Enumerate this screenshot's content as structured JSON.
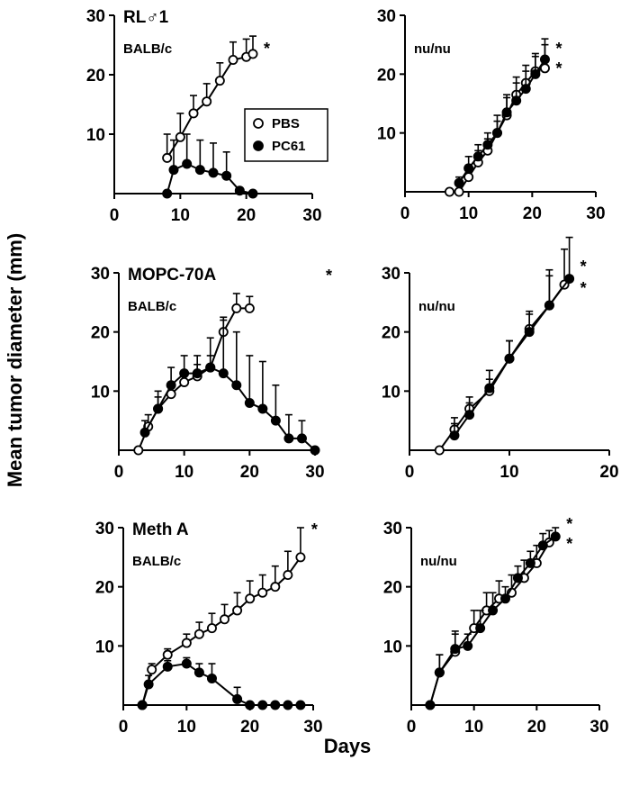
{
  "figure": {
    "ylabel": "Mean tumor diameter (mm)",
    "xlabel": "Days",
    "legend": [
      {
        "label": "PBS",
        "marker": "open-circle"
      },
      {
        "label": "PC61",
        "marker": "filled-circle"
      }
    ]
  },
  "chart_data": [
    {
      "type": "line",
      "title": "RL♂1",
      "strain": "BALB/c",
      "xlim": [
        0,
        30
      ],
      "ylim": [
        0,
        30
      ],
      "xticks": [
        "0",
        "10",
        "20",
        "30"
      ],
      "yticks": [
        "10",
        "20",
        "30"
      ],
      "stars": [
        "*"
      ],
      "series": [
        {
          "name": "PBS",
          "marker": "open",
          "x": [
            8,
            10,
            12,
            14,
            16,
            18,
            20,
            21
          ],
          "y": [
            6,
            9.5,
            13.5,
            15.5,
            19,
            22.5,
            23,
            23.5
          ],
          "err": [
            4,
            4,
            3,
            3,
            3,
            3,
            3,
            3
          ]
        },
        {
          "name": "PC61",
          "marker": "filled",
          "x": [
            8,
            9,
            11,
            13,
            15,
            17,
            19,
            21
          ],
          "y": [
            0,
            4,
            5,
            4,
            3.5,
            3,
            0.5,
            0
          ],
          "err": [
            0,
            5,
            5,
            5,
            5,
            4,
            0,
            0
          ]
        }
      ]
    },
    {
      "type": "line",
      "title": "",
      "strain": "nu/nu",
      "xlim": [
        0,
        30
      ],
      "ylim": [
        0,
        30
      ],
      "xticks": [
        "0",
        "10",
        "20",
        "30"
      ],
      "yticks": [
        "10",
        "20",
        "30"
      ],
      "stars": [
        "*",
        "*"
      ],
      "series": [
        {
          "name": "PBS",
          "marker": "open",
          "x": [
            7,
            8.5,
            10,
            11.5,
            13,
            14.5,
            16,
            17.5,
            19,
            20.5,
            22
          ],
          "y": [
            0,
            0,
            2.5,
            5,
            7,
            10,
            13,
            16.5,
            18.5,
            20.5,
            21
          ],
          "err": [
            0,
            0,
            2,
            2,
            2,
            2,
            3,
            3,
            3,
            3,
            4
          ]
        },
        {
          "name": "PC61",
          "marker": "filled",
          "x": [
            8.5,
            10,
            11.5,
            13,
            14.5,
            16,
            17.5,
            19,
            20.5,
            22
          ],
          "y": [
            1.5,
            4,
            6,
            8,
            10,
            13.5,
            15.5,
            17.5,
            20,
            22.5
          ],
          "err": [
            1,
            2,
            2,
            2,
            3,
            3,
            3,
            3,
            3,
            3.5
          ]
        }
      ]
    },
    {
      "type": "line",
      "title": "MOPC-70A",
      "strain": "BALB/c",
      "xlim": [
        0,
        30
      ],
      "ylim": [
        0,
        30
      ],
      "xticks": [
        "0",
        "10",
        "20",
        "30"
      ],
      "yticks": [
        "10",
        "20",
        "30"
      ],
      "stars": [
        "*"
      ],
      "series": [
        {
          "name": "PBS",
          "marker": "open",
          "x": [
            3,
            4.5,
            6,
            8,
            10,
            12,
            14,
            16,
            18,
            20
          ],
          "y": [
            0,
            4,
            7,
            9.5,
            11.5,
            12.5,
            14,
            20,
            24,
            24
          ],
          "err": [
            0,
            2,
            2,
            2,
            2,
            2,
            2,
            2.5,
            2.5,
            2
          ]
        },
        {
          "name": "PC61",
          "marker": "filled",
          "x": [
            4,
            6,
            8,
            10,
            12,
            14,
            16,
            18,
            20,
            22,
            24,
            26,
            28,
            30
          ],
          "y": [
            3,
            7,
            11,
            13,
            13,
            14,
            13,
            11,
            8,
            7,
            5,
            2,
            2,
            0
          ],
          "err": [
            2,
            3,
            3,
            3,
            3,
            5,
            9,
            9,
            8,
            8,
            6,
            4,
            3,
            0
          ]
        }
      ]
    },
    {
      "type": "line",
      "title": "",
      "strain": "nu/nu",
      "xlim": [
        0,
        20
      ],
      "ylim": [
        0,
        30
      ],
      "xticks": [
        "0",
        "10",
        "20"
      ],
      "yticks": [
        "10",
        "20",
        "30"
      ],
      "stars": [
        "*",
        "*"
      ],
      "series": [
        {
          "name": "PBS",
          "marker": "open",
          "x": [
            3,
            4.5,
            6,
            8,
            10,
            12,
            14,
            15.5
          ],
          "y": [
            0,
            3.5,
            7,
            10,
            15.5,
            20.5,
            24.5,
            28
          ],
          "err": [
            0,
            2,
            2,
            2,
            3,
            3,
            5,
            6
          ]
        },
        {
          "name": "PC61",
          "marker": "filled",
          "x": [
            4.5,
            6,
            8,
            10,
            12,
            14,
            16
          ],
          "y": [
            2.5,
            6,
            10.5,
            15.5,
            20,
            24.5,
            29
          ],
          "err": [
            2,
            2,
            3,
            3,
            3,
            6,
            7
          ]
        }
      ]
    },
    {
      "type": "line",
      "title": "Meth A",
      "strain": "BALB/c",
      "xlim": [
        0,
        30
      ],
      "ylim": [
        0,
        30
      ],
      "xticks": [
        "0",
        "10",
        "20",
        "30"
      ],
      "yticks": [
        "10",
        "20",
        "30"
      ],
      "stars": [
        "*"
      ],
      "series": [
        {
          "name": "PBS",
          "marker": "open",
          "x": [
            3,
            4.5,
            7,
            10,
            12,
            14,
            16,
            18,
            20,
            22,
            24,
            26,
            28
          ],
          "y": [
            0,
            6,
            8.5,
            10.5,
            12,
            13,
            14.5,
            16,
            18,
            19,
            20,
            22,
            25
          ],
          "err": [
            0,
            1,
            1,
            1.5,
            2,
            2.5,
            2.5,
            3,
            3,
            3,
            3.5,
            4,
            5
          ]
        },
        {
          "name": "PC61",
          "marker": "filled",
          "x": [
            3,
            4,
            7,
            10,
            12,
            14,
            18,
            20,
            22,
            24,
            26,
            28
          ],
          "y": [
            0,
            3.5,
            6.5,
            7,
            5.5,
            4.5,
            1,
            0,
            0,
            0,
            0,
            0
          ],
          "err": [
            0,
            1.5,
            1,
            1,
            1.5,
            2.5,
            2,
            0,
            0,
            0,
            0,
            0
          ]
        }
      ]
    },
    {
      "type": "line",
      "title": "",
      "strain": "nu/nu",
      "xlim": [
        0,
        30
      ],
      "ylim": [
        0,
        30
      ],
      "xticks": [
        "0",
        "10",
        "20",
        "30"
      ],
      "yticks": [
        "10",
        "20",
        "30"
      ],
      "stars": [
        "*",
        "*"
      ],
      "series": [
        {
          "name": "PBS",
          "marker": "open",
          "x": [
            3,
            4.5,
            7,
            10,
            12,
            14,
            16,
            18,
            20,
            22
          ],
          "y": [
            0,
            5.5,
            9,
            13,
            16,
            18,
            19,
            21.5,
            24,
            27.5
          ],
          "err": [
            0,
            3,
            3,
            3,
            3,
            3,
            3,
            3,
            3,
            2
          ]
        },
        {
          "name": "PC61",
          "marker": "filled",
          "x": [
            3,
            4.5,
            7,
            9,
            11,
            13,
            15,
            17,
            19,
            21,
            23
          ],
          "y": [
            0,
            5.5,
            9.5,
            10,
            13,
            16,
            18,
            21.5,
            24,
            27,
            28.5
          ],
          "err": [
            0,
            3,
            3,
            2,
            3,
            3,
            2,
            2,
            2,
            2,
            1.5
          ]
        }
      ]
    }
  ]
}
